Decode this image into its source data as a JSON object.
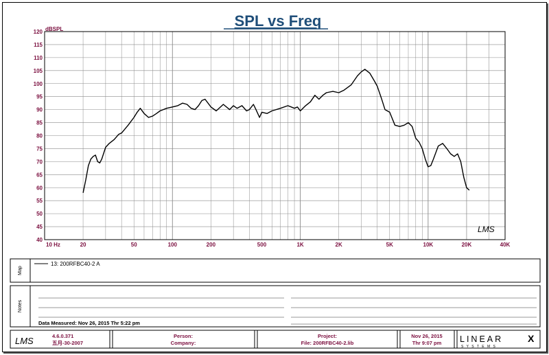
{
  "chart_data": {
    "type": "line",
    "title": "SPL vs Freq",
    "y_unit_label": "dBSPL",
    "xscale": "log",
    "xlim": [
      10,
      40000
    ],
    "ylim": [
      40,
      120
    ],
    "grid": true,
    "x_tick_labels": [
      {
        "value": 10,
        "label": "10  Hz"
      },
      {
        "value": 20,
        "label": "20"
      },
      {
        "value": 50,
        "label": "50"
      },
      {
        "value": 100,
        "label": "100"
      },
      {
        "value": 200,
        "label": "200"
      },
      {
        "value": 500,
        "label": "500"
      },
      {
        "value": 1000,
        "label": "1K"
      },
      {
        "value": 2000,
        "label": "2K"
      },
      {
        "value": 5000,
        "label": "5K"
      },
      {
        "value": 10000,
        "label": "10K"
      },
      {
        "value": 20000,
        "label": "20K"
      },
      {
        "value": 40000,
        "label": "40K"
      }
    ],
    "y_ticks": [
      40,
      45,
      50,
      55,
      60,
      65,
      70,
      75,
      80,
      85,
      90,
      95,
      100,
      105,
      110,
      115,
      120
    ],
    "series": [
      {
        "name": "13: 200RFBC40-2 A",
        "color": "#000000",
        "x": [
          20,
          21,
          22,
          23,
          24,
          25,
          26,
          27,
          28,
          30,
          32,
          35,
          38,
          40,
          45,
          50,
          53,
          56,
          60,
          65,
          70,
          75,
          80,
          90,
          100,
          110,
          120,
          130,
          140,
          150,
          160,
          170,
          180,
          200,
          220,
          250,
          280,
          300,
          320,
          350,
          380,
          400,
          430,
          450,
          480,
          500,
          550,
          600,
          700,
          800,
          850,
          900,
          950,
          1000,
          1100,
          1200,
          1300,
          1400,
          1500,
          1600,
          1800,
          2000,
          2200,
          2500,
          2800,
          3000,
          3200,
          3500,
          3800,
          4000,
          4300,
          4600,
          5000,
          5500,
          6000,
          6500,
          7000,
          7500,
          8000,
          8500,
          9000,
          9500,
          10000,
          10500,
          11000,
          12000,
          13000,
          14000,
          15000,
          16000,
          17000,
          18000,
          19000,
          20000,
          21000
        ],
        "y": [
          58,
          63,
          68.5,
          71,
          72,
          72.5,
          70,
          69.5,
          71,
          75.5,
          77,
          78.5,
          80.5,
          81,
          84,
          87,
          89,
          90.5,
          88.5,
          87,
          87.5,
          88.5,
          89.5,
          90.5,
          91,
          91.5,
          92.5,
          92,
          90.5,
          90,
          91.5,
          93.5,
          94,
          91,
          89.5,
          92,
          90,
          91.5,
          90.5,
          91.5,
          89.5,
          90,
          92,
          90,
          87,
          89,
          88.5,
          89.5,
          90.5,
          91.5,
          91,
          90.5,
          91,
          89.5,
          91.5,
          93,
          95.5,
          94,
          95.5,
          96.5,
          97,
          96.5,
          97.5,
          99.5,
          103,
          104.5,
          105.5,
          104,
          101,
          99,
          94.5,
          90,
          89,
          84,
          83.5,
          84,
          85,
          83.5,
          79,
          77.5,
          75,
          71,
          68,
          68.5,
          71,
          76,
          77,
          75,
          73,
          72,
          73,
          70,
          64,
          60,
          59
        ]
      }
    ]
  },
  "chart_corner_mark": "LMS",
  "map_panel": {
    "label": "Map",
    "legend_entry": "13: 200RFBC40-2 A"
  },
  "notes_panel": {
    "label": "Notes",
    "data_measured": "Data Measured: Nov 26, 2015  Thr  5:22 pm"
  },
  "footer": {
    "logo": "LMS",
    "version": "4.6.0.371",
    "version_date": "五月-30-2007",
    "person_label": "Person:",
    "company_label": "Company:",
    "project_label": "Project:",
    "file_label": "File: 200RFBC40-2.lib",
    "date": "Nov 26, 2015",
    "time": "Thr  9:07 pm",
    "brand_main": "LINEAR",
    "brand_x": "X",
    "brand_sub": "S Y S T E M S"
  },
  "colors": {
    "title": "#1f4e79",
    "tick_label": "#7b0f3f",
    "grid": "#8a8a8a",
    "curve": "#000000"
  }
}
